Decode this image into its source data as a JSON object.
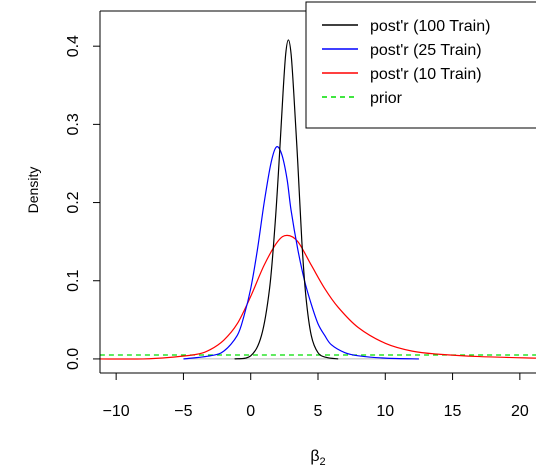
{
  "chart_data": {
    "type": "line",
    "title": "",
    "xlabel_base": "β",
    "xlabel_sub": "2",
    "ylabel": "Density",
    "xlim": [
      -11.2,
      21.2
    ],
    "ylim": [
      -0.018,
      0.445
    ],
    "xticks": [
      -10,
      -5,
      0,
      5,
      10,
      15,
      20
    ],
    "xtick_labels": [
      "−10",
      "−5",
      "0",
      "5",
      "10",
      "15",
      "20"
    ],
    "yticks": [
      0.0,
      0.1,
      0.2,
      0.3,
      0.4
    ],
    "ytick_labels": [
      "0.0",
      "0.1",
      "0.2",
      "0.3",
      "0.4"
    ],
    "grid": false,
    "legend_position": "top-right",
    "series": [
      {
        "name": "post'r (100 Train)",
        "color": "#000000",
        "dash": false,
        "x": [
          -1.2,
          0.0,
          0.8,
          1.4,
          1.8,
          2.1,
          2.4,
          2.6,
          2.8,
          3.0,
          3.2,
          3.5,
          3.8,
          4.1,
          4.5,
          5.0,
          5.6,
          6.5
        ],
        "y": [
          0.0,
          0.004,
          0.03,
          0.09,
          0.17,
          0.25,
          0.34,
          0.39,
          0.408,
          0.39,
          0.34,
          0.25,
          0.15,
          0.08,
          0.03,
          0.008,
          0.002,
          0.0
        ]
      },
      {
        "name": "post'r (25 Train)",
        "color": "#0000ff",
        "dash": false,
        "x": [
          -5.0,
          -3.0,
          -2.0,
          -1.0,
          -0.5,
          0.0,
          0.5,
          1.0,
          1.5,
          1.9,
          2.3,
          2.7,
          3.0,
          3.5,
          4.0,
          4.5,
          5.0,
          5.5,
          6.0,
          7.0,
          8.0,
          10.0,
          12.5
        ],
        "y": [
          0.0,
          0.004,
          0.01,
          0.03,
          0.055,
          0.09,
          0.14,
          0.2,
          0.25,
          0.271,
          0.262,
          0.23,
          0.19,
          0.14,
          0.1,
          0.07,
          0.045,
          0.03,
          0.018,
          0.008,
          0.004,
          0.001,
          0.0
        ]
      },
      {
        "name": "post'r (10 Train)",
        "color": "#ff0000",
        "dash": false,
        "x": [
          -11.2,
          -8.0,
          -6.0,
          -4.0,
          -3.0,
          -2.0,
          -1.0,
          0.0,
          1.0,
          2.0,
          2.7,
          3.5,
          4.5,
          5.5,
          6.5,
          8.0,
          10.0,
          12.0,
          14.0,
          17.0,
          21.2
        ],
        "y": [
          0.0,
          0.0,
          0.002,
          0.006,
          0.012,
          0.024,
          0.045,
          0.08,
          0.12,
          0.15,
          0.158,
          0.15,
          0.12,
          0.09,
          0.066,
          0.04,
          0.02,
          0.01,
          0.006,
          0.003,
          0.001
        ]
      },
      {
        "name": "prior",
        "color": "#00dd00",
        "dash": true,
        "x": [
          -11.2,
          21.2
        ],
        "y": [
          0.005,
          0.005
        ]
      }
    ],
    "baseline": {
      "y": 0.0,
      "x_from": -5.0,
      "x_to": 12.5,
      "color": "#bbbbbb"
    }
  }
}
